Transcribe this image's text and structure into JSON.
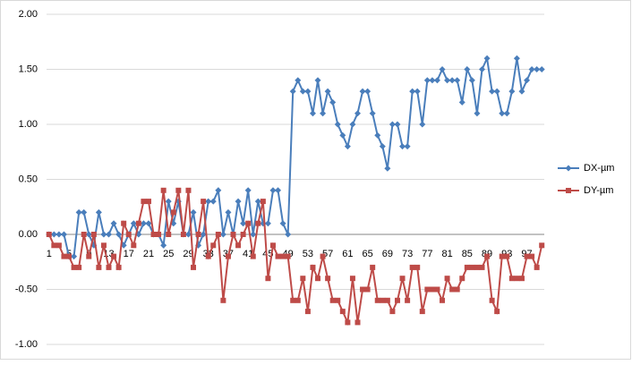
{
  "chart_data": {
    "type": "line",
    "categories": [
      1,
      null,
      null,
      null,
      5,
      null,
      null,
      null,
      9,
      null,
      null,
      null,
      13,
      null,
      null,
      null,
      17,
      null,
      null,
      null,
      21,
      null,
      null,
      null,
      25,
      null,
      null,
      null,
      29,
      null,
      null,
      null,
      33,
      null,
      null,
      null,
      37,
      null,
      null,
      null,
      41,
      null,
      null,
      null,
      45,
      null,
      null,
      null,
      49,
      null,
      null,
      null,
      53,
      null,
      null,
      null,
      57,
      null,
      null,
      null,
      61,
      null,
      null,
      null,
      65,
      null,
      null,
      null,
      69,
      null,
      null,
      null,
      73,
      null,
      null,
      null,
      77,
      null,
      null,
      null,
      81,
      null,
      null,
      null,
      85,
      null,
      null,
      null,
      89,
      null,
      null,
      null,
      93,
      null,
      null,
      null,
      97,
      null,
      null,
      null
    ],
    "series": [
      {
        "name": "DX-µm",
        "color": "#4a7ebb",
        "marker": "diamond",
        "values": [
          0,
          0,
          0,
          0,
          -0.2,
          -0.2,
          0.2,
          0.2,
          0,
          -0.1,
          0.2,
          0,
          0,
          0.1,
          0,
          -0.1,
          0,
          0.1,
          0,
          0.1,
          0.1,
          0,
          0,
          -0.1,
          0.3,
          0.1,
          0.3,
          0,
          0,
          0.2,
          -0.1,
          0,
          0.3,
          0.3,
          0.4,
          0,
          0.2,
          0,
          0.3,
          0.1,
          0.4,
          0,
          0.3,
          0.1,
          0.1,
          0.4,
          0.4,
          0.1,
          0,
          1.3,
          1.4,
          1.3,
          1.3,
          1.1,
          1.4,
          1.1,
          1.3,
          1.2,
          1.0,
          0.9,
          0.8,
          1.0,
          1.1,
          1.3,
          1.3,
          1.1,
          0.9,
          0.8,
          0.6,
          1.0,
          1.0,
          0.8,
          0.8,
          1.3,
          1.3,
          1.0,
          1.4,
          1.4,
          1.4,
          1.5,
          1.4,
          1.4,
          1.4,
          1.2,
          1.5,
          1.4,
          1.1,
          1.5,
          1.6,
          1.3,
          1.3,
          1.1,
          1.1,
          1.3,
          1.6,
          1.3,
          1.4,
          1.5,
          1.5,
          1.5
        ]
      },
      {
        "name": "DY-µm",
        "color": "#be4b48",
        "marker": "square",
        "values": [
          0,
          -0.1,
          -0.1,
          -0.2,
          -0.2,
          -0.3,
          -0.3,
          0,
          -0.2,
          0,
          -0.3,
          -0.1,
          -0.3,
          -0.2,
          -0.3,
          0.1,
          0,
          -0.1,
          0.1,
          0.3,
          0.3,
          0,
          0,
          0.4,
          0,
          0.2,
          0.4,
          0,
          0.4,
          -0.3,
          0,
          0.3,
          -0.2,
          -0.1,
          0,
          -0.6,
          -0.2,
          0,
          -0.1,
          0,
          0.1,
          -0.2,
          0.1,
          0.3,
          -0.4,
          -0.1,
          -0.2,
          -0.2,
          -0.2,
          -0.6,
          -0.6,
          -0.4,
          -0.7,
          -0.3,
          -0.4,
          -0.2,
          -0.4,
          -0.6,
          -0.6,
          -0.7,
          -0.8,
          -0.4,
          -0.8,
          -0.5,
          -0.5,
          -0.3,
          -0.6,
          -0.6,
          -0.6,
          -0.7,
          -0.6,
          -0.4,
          -0.6,
          -0.3,
          -0.3,
          -0.7,
          -0.5,
          -0.5,
          -0.5,
          -0.6,
          -0.4,
          -0.5,
          -0.5,
          -0.4,
          -0.3,
          -0.3,
          -0.3,
          -0.3,
          -0.2,
          -0.6,
          -0.7,
          -0.2,
          -0.2,
          -0.4,
          -0.4,
          -0.4,
          -0.2,
          -0.2,
          -0.3,
          -0.1
        ]
      }
    ],
    "ylim": [
      -1,
      2
    ],
    "yticks": [
      {
        "value": -1,
        "label": "-1.00"
      },
      {
        "value": -0.5,
        "label": "-0.50"
      },
      {
        "value": 0,
        "label": "0.00"
      },
      {
        "value": 0.5,
        "label": "0.50"
      },
      {
        "value": 1,
        "label": "1.00"
      },
      {
        "value": 1.5,
        "label": "1.50"
      },
      {
        "value": 2,
        "label": "2.00"
      }
    ],
    "grid": true,
    "legend": "right"
  }
}
